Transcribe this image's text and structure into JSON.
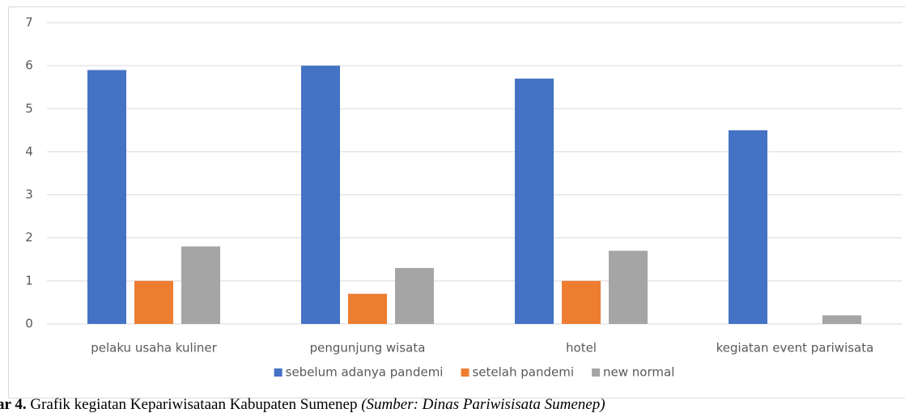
{
  "chart_data": {
    "type": "bar",
    "categories": [
      "pelaku usaha kuliner",
      "pengunjung wisata",
      "hotel",
      "kegiatan event pariwisata"
    ],
    "series": [
      {
        "name": "sebelum adanya pandemi",
        "color": "#4472c4",
        "values": [
          5.9,
          6.0,
          5.7,
          4.5
        ]
      },
      {
        "name": "setelah pandemi",
        "color": "#ed7d31",
        "values": [
          1.0,
          0.7,
          1.0,
          0
        ]
      },
      {
        "name": "new normal",
        "color": "#a5a5a5",
        "values": [
          1.8,
          1.3,
          1.7,
          0.2
        ]
      }
    ],
    "ylim": [
      0,
      7
    ],
    "yticks": [
      0,
      1,
      2,
      3,
      4,
      5,
      6,
      7
    ],
    "grid": true,
    "legend": "bottom"
  },
  "caption": {
    "label": "ar 4.",
    "text": " Grafik kegiatan Kepariwisataan Kabupaten Sumenep ",
    "source": "(Sumber: Dinas Pariwisisata Sumenep)"
  }
}
